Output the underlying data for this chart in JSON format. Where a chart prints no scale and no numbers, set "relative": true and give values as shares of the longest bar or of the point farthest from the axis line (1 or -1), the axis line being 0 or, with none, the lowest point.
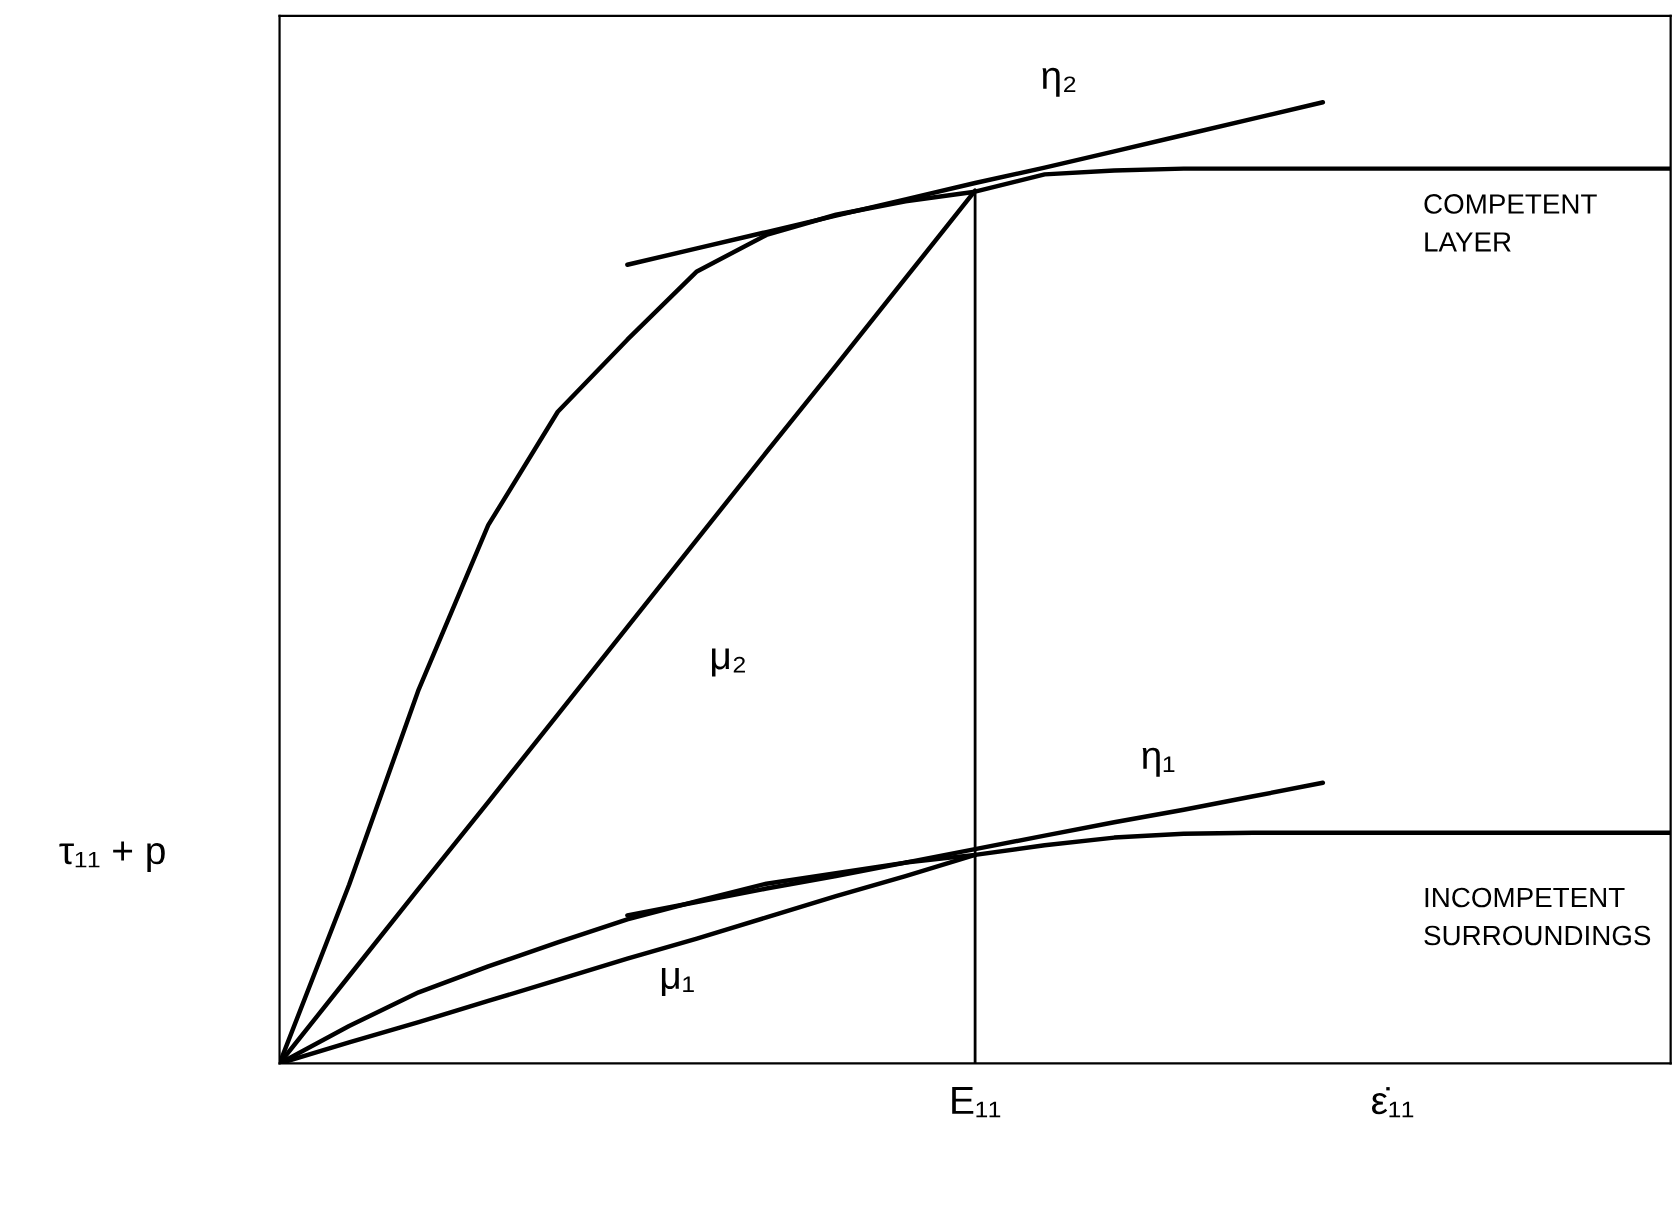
{
  "chart_data": {
    "type": "line",
    "relative": true,
    "ylabel": "τ₁₁ + p",
    "categories": [
      null,
      null,
      null,
      null,
      null,
      null,
      null,
      null,
      null,
      null,
      "E₁₁",
      null,
      null,
      null,
      null,
      null,
      "ε̇₁₁",
      null,
      null,
      null,
      null
    ],
    "marker": "none",
    "line_style": "solid",
    "series": [
      {
        "color": "#000000",
        "values": [
          0,
          0.186,
          0.389,
          0.56,
          0.678,
          0.753,
          0.824,
          0.862,
          0.883,
          0.897,
          0.907,
          0.925,
          0.929,
          0.931,
          0.931,
          0.931,
          0.931,
          0.931,
          0.931,
          0.931,
          0.931
        ]
      },
      {
        "color": "#000000",
        "values": [
          0,
          0.039,
          0.074,
          0.101,
          0.126,
          0.15,
          0.169,
          0.187,
          0.198,
          0.209,
          0.217,
          0.227,
          0.235,
          0.239,
          0.24,
          0.24,
          0.24,
          0.24,
          0.24,
          0.24,
          0.24
        ]
      },
      {
        "color": "#000000",
        "values": [
          null,
          null,
          null,
          null,
          null,
          0.831,
          0.848,
          0.865,
          0.882,
          0.899,
          0.916,
          0.932,
          0.949,
          0.966,
          0.983,
          1.0,
          null,
          null,
          null,
          null,
          null
        ]
      },
      {
        "color": "#000000",
        "values": [
          0,
          0.091,
          0.182,
          0.272,
          0.363,
          0.454,
          0.545,
          0.636,
          0.726,
          0.817,
          0.908,
          null,
          null,
          null,
          null,
          null,
          null,
          null,
          null,
          null,
          null
        ]
      },
      {
        "color": "#000000",
        "values": [
          null,
          null,
          null,
          null,
          null,
          0.154,
          0.168,
          0.182,
          0.195,
          0.209,
          0.223,
          0.237,
          0.251,
          0.264,
          0.278,
          0.292,
          null,
          null,
          null,
          null,
          null
        ]
      },
      {
        "color": "#000000",
        "values": [
          0,
          0.022,
          0.043,
          0.065,
          0.087,
          0.109,
          0.13,
          0.152,
          0.174,
          0.195,
          0.217,
          null,
          null,
          null,
          null,
          null,
          null,
          null,
          null,
          null,
          null
        ]
      },
      {
        "type": "bar",
        "color": "#000000",
        "values": [
          null,
          null,
          null,
          null,
          null,
          null,
          null,
          null,
          null,
          null,
          0.908,
          null,
          null,
          null,
          null,
          null,
          null,
          null,
          null,
          null,
          null
        ]
      }
    ],
    "annotations": [
      "η₂",
      "μ₂",
      "η₁",
      "μ₁",
      "COMPETENT\nLAYER",
      "INCOMPETENT\nSURROUNDINGS"
    ]
  }
}
